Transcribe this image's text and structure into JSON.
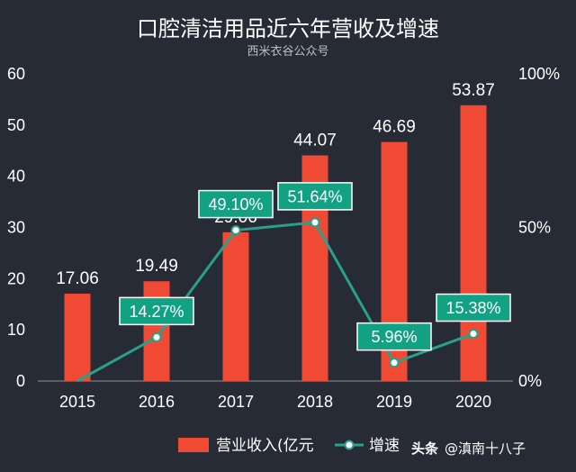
{
  "chart_data": {
    "type": "bar",
    "title": "口腔清洁用品近六年营收及增速",
    "subtitle": "西米衣谷公众号",
    "categories": [
      "2015",
      "2016",
      "2017",
      "2018",
      "2019",
      "2020"
    ],
    "series": [
      {
        "name": "营业收入(亿元",
        "type": "bar",
        "axis": "left",
        "values": [
          17.06,
          19.49,
          29.06,
          44.07,
          46.69,
          53.87
        ],
        "labels": [
          "17.06",
          "19.49",
          "29.06",
          "44.07",
          "46.69",
          "53.87"
        ]
      },
      {
        "name": "增速",
        "type": "line",
        "axis": "right",
        "values": [
          0,
          14.27,
          49.1,
          51.64,
          5.96,
          15.38
        ],
        "labels": [
          "",
          "14.27%",
          "49.10%",
          "51.64%",
          "5.96%",
          "15.38%"
        ]
      }
    ],
    "y_left": {
      "min": 0,
      "max": 60,
      "ticks": [
        "0",
        "10",
        "20",
        "30",
        "40",
        "50",
        "60"
      ]
    },
    "y_right": {
      "min": 0,
      "max": 100,
      "ticks": [
        "0%",
        "50%",
        "100%"
      ]
    },
    "legend_position": "bottom-center",
    "grid": false
  },
  "colors": {
    "background": "#262b36",
    "bar": "#f04a35",
    "line": "#28a08c",
    "label_box": "#13a184",
    "point": "#ffffff"
  },
  "watermark": {
    "brand": "头条",
    "handle": "@滇南十八子"
  }
}
